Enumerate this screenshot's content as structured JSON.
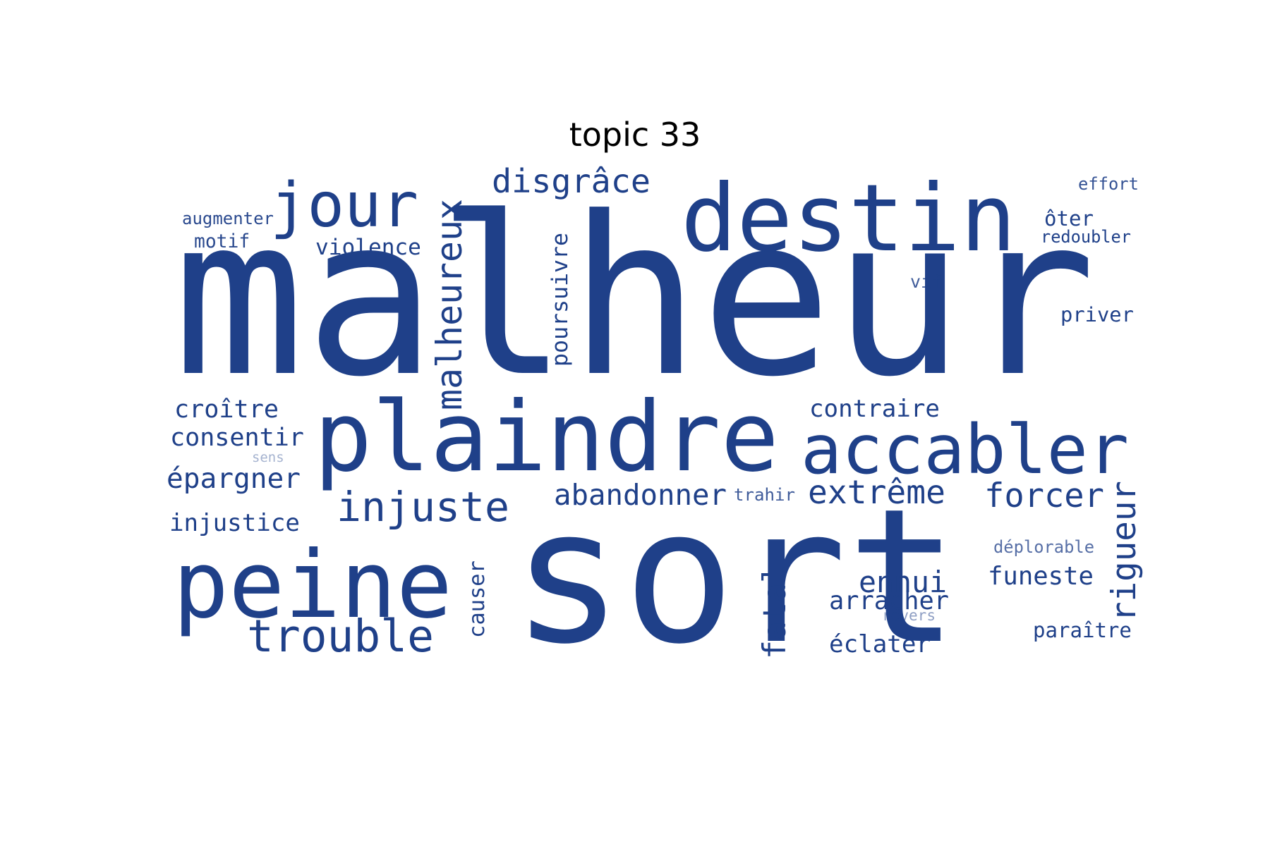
{
  "title": "topic 33",
  "colors": {
    "word": "#1f4089",
    "title": "#000000",
    "background": "#ffffff"
  },
  "words": [
    {
      "text": "malheur"
    },
    {
      "text": "sort"
    },
    {
      "text": "destin"
    },
    {
      "text": "plaindre"
    },
    {
      "text": "accabler"
    },
    {
      "text": "jour"
    },
    {
      "text": "peine"
    },
    {
      "text": "injuste"
    },
    {
      "text": "trouble"
    },
    {
      "text": "malheureux"
    },
    {
      "text": "disgrâce"
    },
    {
      "text": "extrême"
    },
    {
      "text": "forcer"
    },
    {
      "text": "rigueur"
    },
    {
      "text": "abandonner"
    },
    {
      "text": "fatal"
    },
    {
      "text": "ennui"
    },
    {
      "text": "arracher"
    },
    {
      "text": "funeste"
    },
    {
      "text": "poursuivre"
    },
    {
      "text": "causer"
    },
    {
      "text": "violence"
    },
    {
      "text": "épargner"
    },
    {
      "text": "consentir"
    },
    {
      "text": "croître"
    },
    {
      "text": "injustice"
    },
    {
      "text": "contraire"
    },
    {
      "text": "éclater"
    },
    {
      "text": "paraître"
    },
    {
      "text": "priver"
    },
    {
      "text": "ôter"
    },
    {
      "text": "redoubler"
    },
    {
      "text": "augmenter"
    },
    {
      "text": "motif"
    },
    {
      "text": "effort"
    },
    {
      "text": "vif"
    },
    {
      "text": "trahir"
    },
    {
      "text": "déplorable"
    },
    {
      "text": "revers"
    },
    {
      "text": "sens"
    }
  ]
}
